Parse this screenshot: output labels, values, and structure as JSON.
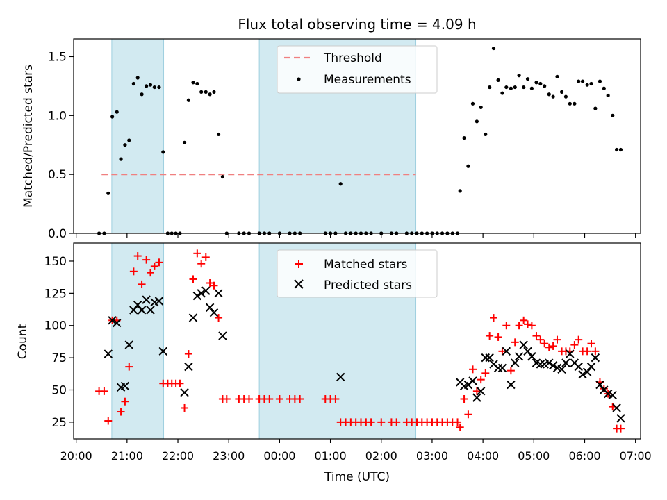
{
  "chart_data": [
    {
      "type": "scatter",
      "title": "Flux total observing time = 4.09 h",
      "xlabel": "",
      "ylabel": "Matched/Predicted stars",
      "ylim": [
        0,
        1.65
      ],
      "yticks": [
        "0.0",
        "0.5",
        "1.0",
        "1.5"
      ],
      "grid": false,
      "legend_position": "top-center",
      "shaded_intervals_hours": [
        [
          20.7,
          21.72
        ],
        [
          23.6,
          26.68
        ]
      ],
      "shaded_color": "#add8e6",
      "threshold": {
        "name": "Threshold",
        "value": 0.5,
        "x_range": [
          20.5,
          26.68
        ],
        "color": "#f08080"
      },
      "series": [
        {
          "name": "Measurements",
          "color": "#000000",
          "x": [
            20.45,
            20.55,
            20.63,
            20.71,
            20.8,
            20.88,
            20.96,
            21.04,
            21.13,
            21.21,
            21.29,
            21.38,
            21.46,
            21.54,
            21.63,
            21.71,
            21.8,
            21.88,
            21.96,
            22.04,
            22.13,
            22.21,
            22.3,
            22.38,
            22.46,
            22.55,
            22.63,
            22.71,
            22.8,
            22.88,
            22.96,
            23.2,
            23.3,
            23.4,
            23.6,
            23.7,
            23.8,
            24.0,
            24.2,
            24.3,
            24.4,
            24.9,
            25.0,
            25.1,
            25.2,
            25.3,
            25.4,
            25.5,
            25.6,
            25.7,
            25.8,
            26.0,
            26.2,
            26.3,
            26.5,
            26.6,
            26.7,
            26.8,
            26.9,
            27.0,
            27.1,
            27.2,
            27.3,
            27.4,
            27.5,
            27.55,
            27.63,
            27.71,
            27.8,
            27.88,
            27.96,
            28.05,
            28.13,
            28.21,
            28.3,
            28.38,
            28.46,
            28.55,
            28.63,
            28.71,
            28.8,
            28.88,
            28.96,
            29.05,
            29.13,
            29.21,
            29.3,
            29.38,
            29.46,
            29.55,
            29.63,
            29.71,
            29.8,
            29.88,
            29.96,
            30.05,
            30.13,
            30.21,
            30.3,
            30.38,
            30.46,
            30.55,
            30.63,
            30.71
          ],
          "y": [
            0,
            0,
            0.34,
            0.99,
            1.03,
            0.63,
            0.75,
            0.79,
            1.27,
            1.32,
            1.18,
            1.25,
            1.26,
            1.24,
            1.24,
            0.69,
            0,
            0,
            0,
            0,
            0.77,
            1.13,
            1.28,
            1.27,
            1.2,
            1.2,
            1.18,
            1.2,
            0.84,
            0.48,
            0,
            0,
            0,
            0,
            0,
            0,
            0,
            0,
            0,
            0,
            0,
            0,
            0,
            0,
            0.42,
            0,
            0,
            0,
            0,
            0,
            0,
            0,
            0,
            0,
            0,
            0,
            0,
            0,
            0,
            0,
            0,
            0,
            0,
            0,
            0,
            0.36,
            0.81,
            0.57,
            1.1,
            0.95,
            1.07,
            0.84,
            1.24,
            1.57,
            1.3,
            1.19,
            1.24,
            1.23,
            1.24,
            1.34,
            1.24,
            1.31,
            1.23,
            1.28,
            1.27,
            1.25,
            1.18,
            1.16,
            1.33,
            1.2,
            1.16,
            1.1,
            1.1,
            1.29,
            1.29,
            1.26,
            1.27,
            1.06,
            1.29,
            1.23,
            1.17,
            1.0,
            0.71,
            0.71
          ]
        }
      ]
    },
    {
      "type": "scatter",
      "title": "",
      "xlabel": "Time (UTC)",
      "ylabel": "Count",
      "ylim": [
        12,
        164
      ],
      "yticks": [
        "25",
        "50",
        "75",
        "100",
        "125",
        "150"
      ],
      "xlim_hours": [
        19.95,
        31.1
      ],
      "xticks": [
        "20:00",
        "21:00",
        "22:00",
        "23:00",
        "00:00",
        "01:00",
        "02:00",
        "03:00",
        "04:00",
        "05:00",
        "06:00",
        "07:00"
      ],
      "grid": false,
      "legend_position": "top-center",
      "shaded_intervals_hours": [
        [
          20.7,
          21.72
        ],
        [
          23.6,
          26.68
        ]
      ],
      "series": [
        {
          "name": "Matched stars",
          "marker": "plus",
          "color": "#ff0000",
          "x": [
            20.45,
            20.55,
            20.63,
            20.71,
            20.8,
            20.88,
            20.96,
            21.04,
            21.13,
            21.21,
            21.29,
            21.38,
            21.46,
            21.54,
            21.63,
            21.71,
            21.8,
            21.88,
            21.96,
            22.04,
            22.13,
            22.21,
            22.3,
            22.38,
            22.46,
            22.55,
            22.63,
            22.71,
            22.8,
            22.88,
            22.96,
            23.2,
            23.3,
            23.4,
            23.6,
            23.7,
            23.8,
            24.0,
            24.2,
            24.3,
            24.4,
            24.9,
            25.0,
            25.1,
            25.2,
            25.3,
            25.4,
            25.5,
            25.6,
            25.7,
            25.8,
            26.0,
            26.2,
            26.3,
            26.5,
            26.6,
            26.7,
            26.8,
            26.9,
            27.0,
            27.1,
            27.2,
            27.3,
            27.4,
            27.5,
            27.55,
            27.63,
            27.71,
            27.8,
            27.88,
            27.96,
            28.05,
            28.13,
            28.21,
            28.3,
            28.38,
            28.46,
            28.55,
            28.63,
            28.71,
            28.8,
            28.88,
            28.96,
            29.05,
            29.13,
            29.21,
            29.3,
            29.38,
            29.46,
            29.55,
            29.63,
            29.71,
            29.8,
            29.88,
            29.96,
            30.05,
            30.13,
            30.21,
            30.3,
            30.38,
            30.46,
            30.55,
            30.63,
            30.71
          ],
          "y": [
            49,
            49,
            26,
            104,
            104,
            33,
            41,
            68,
            142,
            154,
            132,
            151,
            141,
            146,
            149,
            55,
            55,
            55,
            55,
            55,
            36,
            78,
            136,
            156,
            148,
            153,
            133,
            131,
            106,
            43,
            43,
            43,
            43,
            43,
            43,
            43,
            43,
            43,
            43,
            43,
            43,
            43,
            43,
            43,
            25,
            25,
            25,
            25,
            25,
            25,
            25,
            25,
            25,
            25,
            25,
            25,
            25,
            25,
            25,
            25,
            25,
            25,
            25,
            25,
            25,
            21,
            43,
            31,
            66,
            49,
            58,
            63,
            92,
            106,
            91,
            80,
            100,
            65,
            87,
            100,
            104,
            101,
            100,
            92,
            89,
            86,
            83,
            84,
            89,
            80,
            80,
            80,
            85,
            89,
            80,
            80,
            86,
            80,
            56,
            51,
            47,
            37,
            20,
            20
          ]
        },
        {
          "name": "Predicted stars",
          "marker": "x",
          "color": "#000000",
          "x": [
            20.63,
            20.71,
            20.8,
            20.88,
            20.96,
            21.04,
            21.13,
            21.21,
            21.29,
            21.38,
            21.46,
            21.54,
            21.63,
            21.71,
            22.13,
            22.21,
            22.3,
            22.38,
            22.46,
            22.55,
            22.63,
            22.71,
            22.8,
            22.88,
            25.2,
            27.55,
            27.63,
            27.71,
            27.8,
            27.88,
            27.96,
            28.05,
            28.13,
            28.21,
            28.3,
            28.38,
            28.46,
            28.55,
            28.63,
            28.71,
            28.8,
            28.88,
            28.96,
            29.05,
            29.13,
            29.21,
            29.3,
            29.38,
            29.46,
            29.55,
            29.63,
            29.71,
            29.8,
            29.88,
            29.96,
            30.05,
            30.13,
            30.21,
            30.3,
            30.38,
            30.46,
            30.55,
            30.63,
            30.71
          ],
          "y": [
            78,
            104,
            102,
            52,
            53,
            85,
            112,
            116,
            112,
            120,
            112,
            118,
            119,
            80,
            48,
            68,
            106,
            123,
            125,
            127,
            114,
            110,
            125,
            92,
            60,
            56,
            53,
            54,
            57,
            44,
            49,
            75,
            75,
            70,
            67,
            67,
            80,
            54,
            71,
            76,
            85,
            80,
            76,
            71,
            70,
            70,
            71,
            69,
            67,
            66,
            71,
            78,
            71,
            68,
            62,
            64,
            68,
            75,
            54,
            50,
            47,
            46,
            36,
            28
          ]
        }
      ]
    }
  ]
}
